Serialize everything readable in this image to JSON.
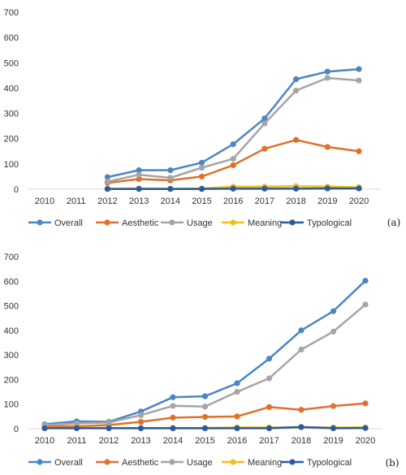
{
  "colors": {
    "Overall": "#4A86C5",
    "Aesthetic": "#E0702A",
    "Usage": "#A5A5A5",
    "Meaning": "#F2BE1A",
    "Typological": "#2B5A9E"
  },
  "chart_data": [
    {
      "type": "line",
      "panel_label": "(a)",
      "x": [
        "2010",
        "2011",
        "2012",
        "2013",
        "2014",
        "2015",
        "2016",
        "2017",
        "2018",
        "2019",
        "2020"
      ],
      "yticks": [
        "0",
        "100",
        "200",
        "300",
        "400",
        "500",
        "600",
        "700"
      ],
      "ylim": [
        0,
        700
      ],
      "grid": false,
      "legend_position": "bottom",
      "series": [
        {
          "name": "Overall",
          "values": [
            null,
            null,
            48,
            75,
            75,
            105,
            178,
            280,
            435,
            465,
            475
          ]
        },
        {
          "name": "Aesthetic",
          "values": [
            null,
            null,
            25,
            40,
            35,
            50,
            95,
            160,
            195,
            167,
            150
          ]
        },
        {
          "name": "Usage",
          "values": [
            null,
            null,
            30,
            57,
            45,
            85,
            120,
            260,
            390,
            440,
            430
          ]
        },
        {
          "name": "Meaning",
          "values": [
            null,
            null,
            2,
            3,
            2,
            3,
            10,
            10,
            12,
            10,
            8
          ]
        },
        {
          "name": "Typological",
          "values": [
            null,
            null,
            1,
            1,
            1,
            1,
            2,
            2,
            2,
            3,
            3
          ]
        }
      ]
    },
    {
      "type": "line",
      "panel_label": "(b)",
      "x": [
        "2010",
        "2011",
        "2012",
        "2013",
        "2014",
        "2015",
        "2016",
        "2017",
        "2018",
        "2019",
        "2020"
      ],
      "yticks": [
        "0",
        "100",
        "200",
        "300",
        "400",
        "500",
        "600",
        "700"
      ],
      "ylim": [
        0,
        700
      ],
      "grid": false,
      "legend_position": "bottom",
      "series": [
        {
          "name": "Overall",
          "values": [
            18,
            30,
            28,
            70,
            128,
            132,
            185,
            285,
            400,
            478,
            602
          ]
        },
        {
          "name": "Aesthetic",
          "values": [
            10,
            10,
            15,
            28,
            45,
            48,
            50,
            88,
            77,
            92,
            103
          ]
        },
        {
          "name": "Usage",
          "values": [
            15,
            22,
            25,
            55,
            93,
            90,
            150,
            205,
            322,
            395,
            505
          ]
        },
        {
          "name": "Meaning",
          "values": [
            3,
            3,
            3,
            3,
            3,
            3,
            5,
            5,
            5,
            5,
            5
          ]
        },
        {
          "name": "Typological",
          "values": [
            2,
            2,
            2,
            2,
            2,
            2,
            2,
            2,
            7,
            2,
            3
          ]
        }
      ]
    }
  ]
}
